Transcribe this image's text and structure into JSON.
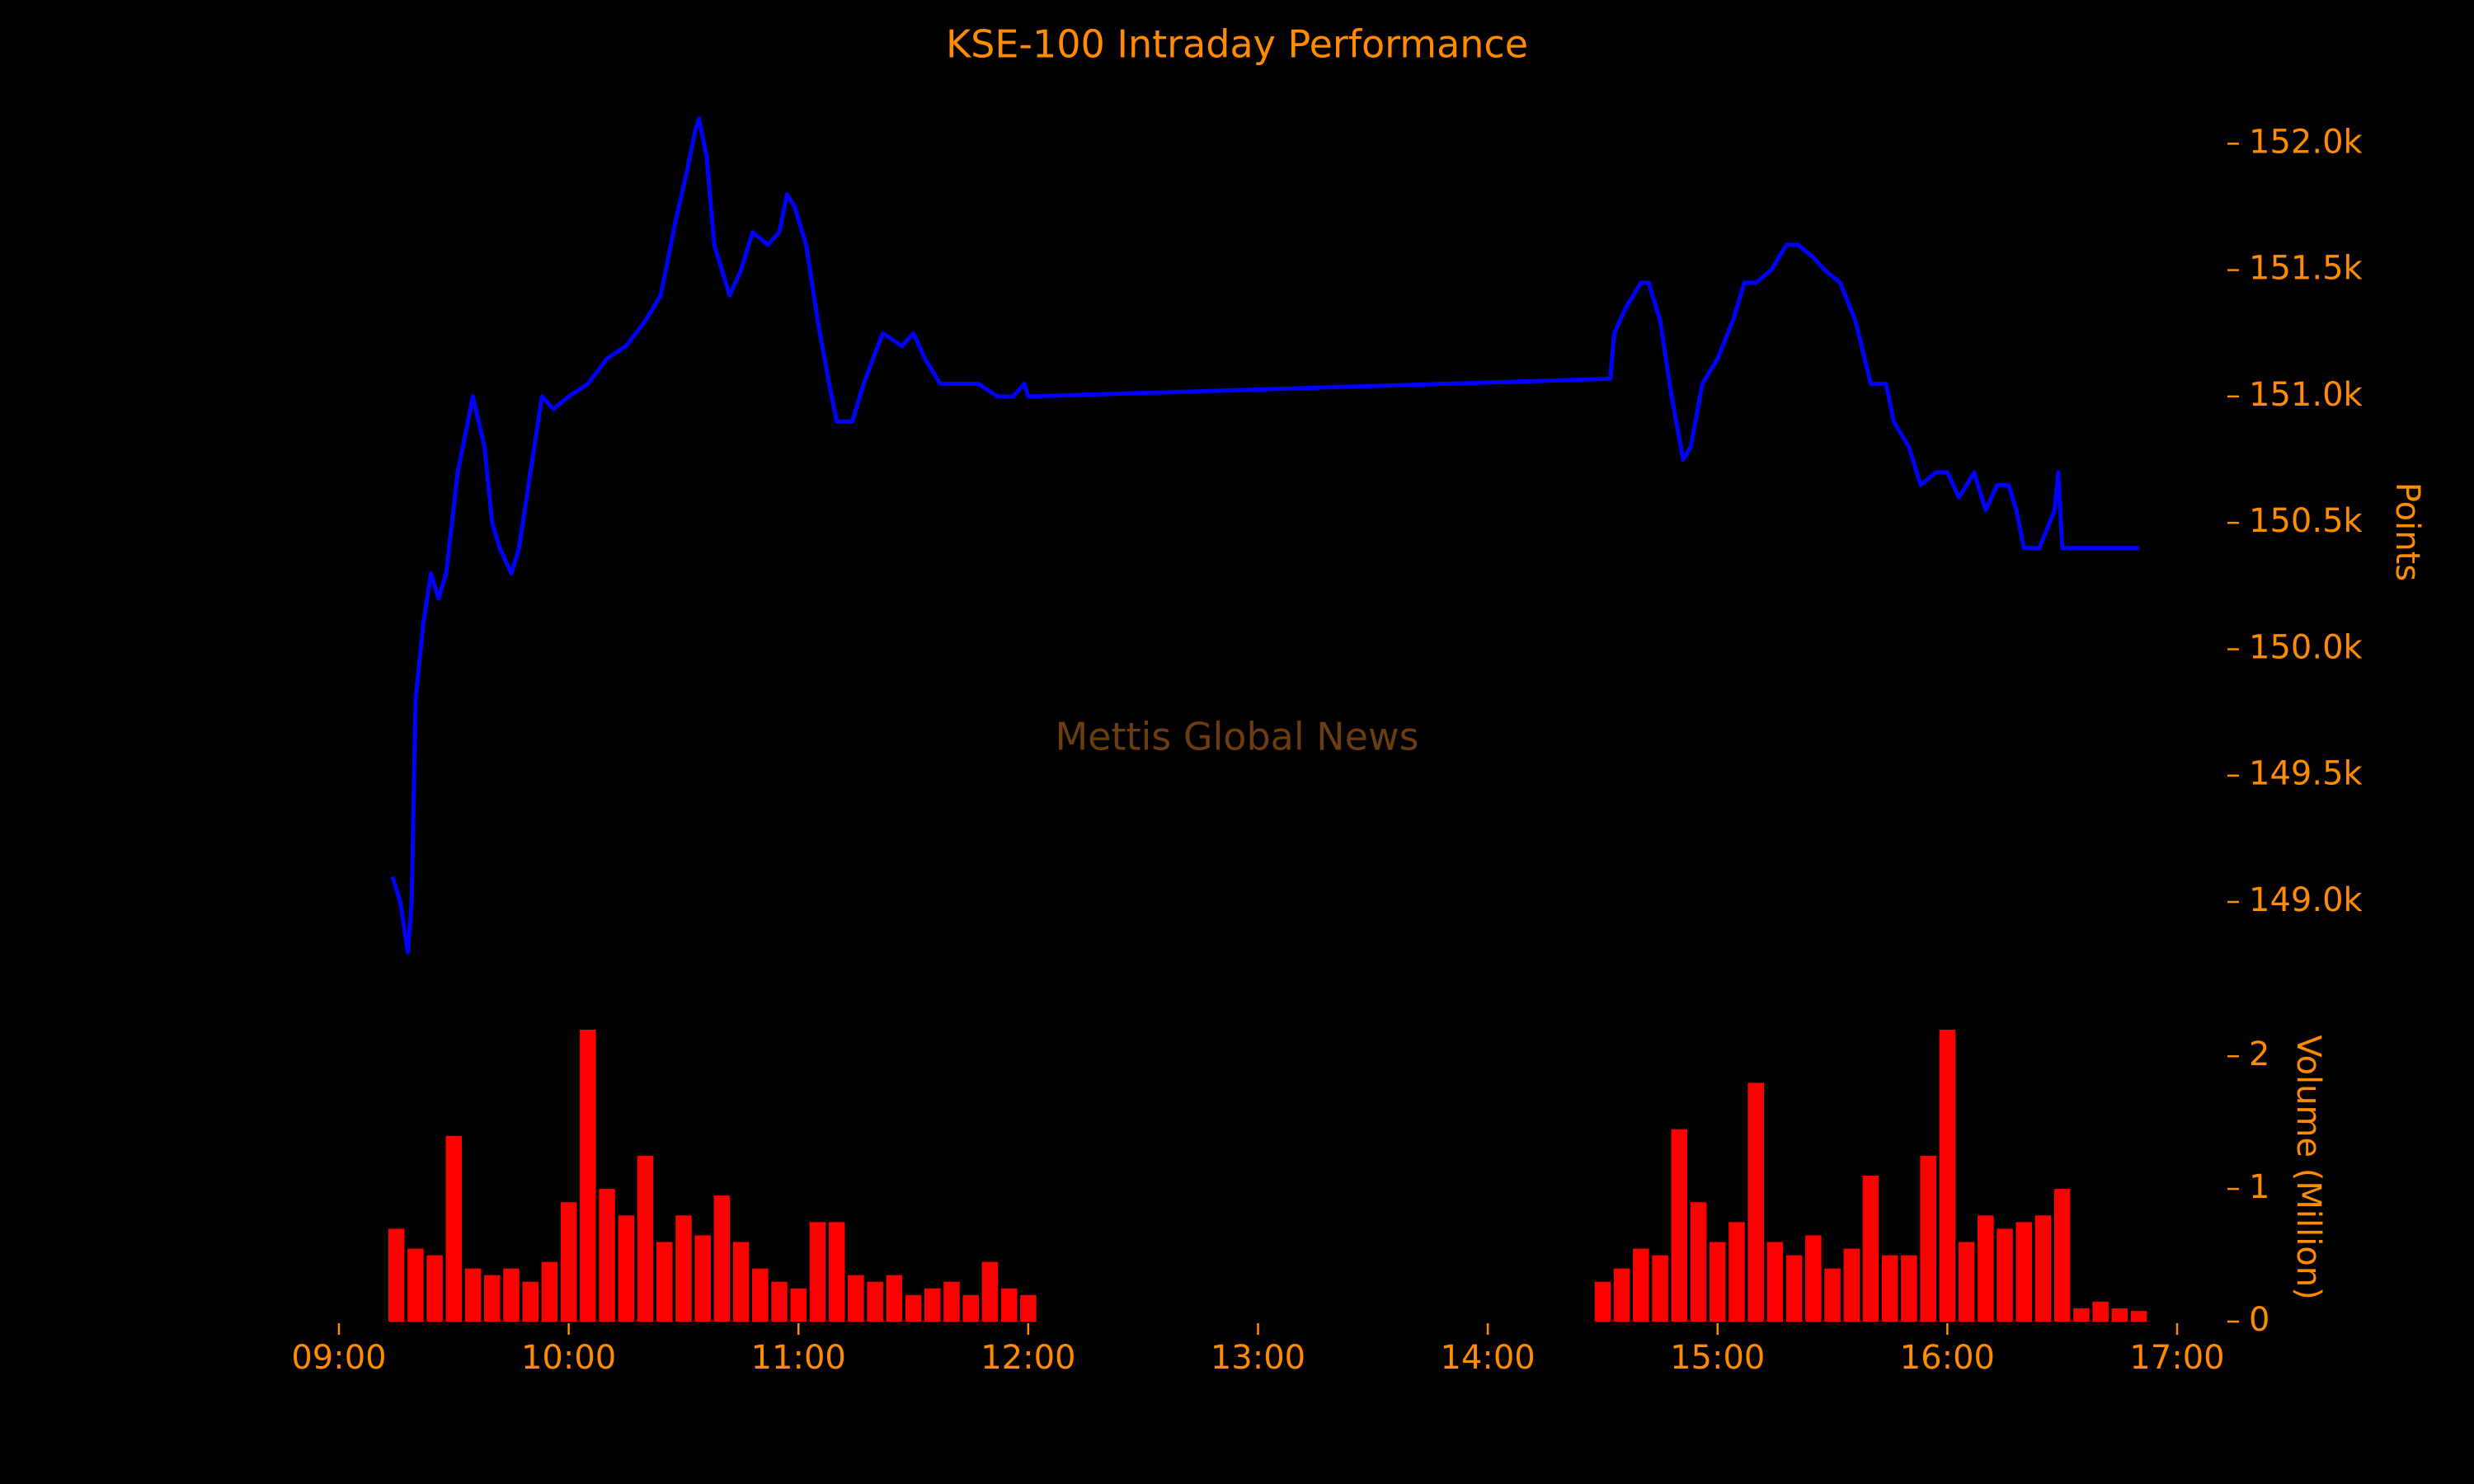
{
  "chart_data": [
    {
      "type": "line",
      "title": "KSE-100 Intraday Performance",
      "annotation": "Mettis Global News",
      "ylabel": "Points",
      "color": "#0000ff",
      "xlim": [
        "09:00",
        "17:00"
      ],
      "x": [
        "09:14",
        "09:16",
        "09:18",
        "09:19",
        "09:20",
        "09:22",
        "09:24",
        "09:26",
        "09:28",
        "09:31",
        "09:35",
        "09:38",
        "09:40",
        "09:42",
        "09:45",
        "09:47",
        "09:50",
        "09:53",
        "09:56",
        "10:00",
        "10:05",
        "10:10",
        "10:15",
        "10:20",
        "10:24",
        "10:28",
        "10:31",
        "10:33",
        "10:34",
        "10:36",
        "10:38",
        "10:40",
        "10:42",
        "10:45",
        "10:48",
        "10:52",
        "10:55",
        "10:57",
        "10:59",
        "11:02",
        "11:05",
        "11:08",
        "11:10",
        "11:14",
        "11:17",
        "11:22",
        "11:27",
        "11:30",
        "11:33",
        "11:37",
        "11:42",
        "11:47",
        "11:52",
        "11:56",
        "11:59",
        "12:00",
        "14:32",
        "14:33",
        "14:36",
        "14:40",
        "14:42",
        "14:45",
        "14:48",
        "14:51",
        "14:53",
        "14:56",
        "15:00",
        "15:04",
        "15:07",
        "15:10",
        "15:14",
        "15:18",
        "15:21",
        "15:25",
        "15:28",
        "15:32",
        "15:36",
        "15:40",
        "15:44",
        "15:46",
        "15:50",
        "15:53",
        "15:57",
        "16:00",
        "16:03",
        "16:07",
        "16:10",
        "16:13",
        "16:16",
        "16:18",
        "16:20",
        "16:24",
        "16:28",
        "16:29",
        "16:30",
        "16:50"
      ],
      "values": [
        149100,
        149000,
        148800,
        149000,
        149800,
        150100,
        150300,
        150200,
        150300,
        150700,
        151000,
        150800,
        150500,
        150400,
        150300,
        150400,
        150700,
        151000,
        150950,
        151000,
        151050,
        151150,
        151200,
        151300,
        151400,
        151700,
        151900,
        152050,
        152100,
        151950,
        151600,
        151500,
        151400,
        151500,
        151650,
        151600,
        151650,
        151800,
        151750,
        151600,
        151300,
        151050,
        150900,
        150900,
        151050,
        151250,
        151200,
        151250,
        151150,
        151050,
        151050,
        151050,
        151000,
        151000,
        151050,
        151000,
        151070,
        151250,
        151350,
        151450,
        151450,
        151300,
        151000,
        150750,
        150800,
        151050,
        151150,
        151300,
        151450,
        151450,
        151500,
        151600,
        151600,
        151550,
        151500,
        151450,
        151300,
        151050,
        151050,
        150900,
        150800,
        150650,
        150700,
        150700,
        150600,
        150700,
        150550,
        150650,
        150650,
        150550,
        150400,
        150400,
        150550,
        150700,
        150400,
        150400
      ],
      "ylim": [
        148700,
        152200
      ],
      "yticks": [
        {
          "value": 149000,
          "label": "149.0k"
        },
        {
          "value": 149500,
          "label": "149.5k"
        },
        {
          "value": 150000,
          "label": "150.0k"
        },
        {
          "value": 150500,
          "label": "150.5k"
        },
        {
          "value": 151000,
          "label": "151.0k"
        },
        {
          "value": 151500,
          "label": "151.5k"
        },
        {
          "value": 152000,
          "label": "152.0k"
        }
      ]
    },
    {
      "type": "bar",
      "ylabel": "Volume (Million)",
      "color": "#ff0000",
      "xlim": [
        "09:00",
        "17:00"
      ],
      "xticks": [
        "09:00",
        "10:00",
        "11:00",
        "12:00",
        "13:00",
        "14:00",
        "15:00",
        "16:00",
        "17:00"
      ],
      "x": [
        "09:15",
        "09:20",
        "09:25",
        "09:30",
        "09:35",
        "09:40",
        "09:45",
        "09:50",
        "09:55",
        "10:00",
        "10:05",
        "10:10",
        "10:15",
        "10:20",
        "10:25",
        "10:30",
        "10:35",
        "10:40",
        "10:45",
        "10:50",
        "10:55",
        "11:00",
        "11:05",
        "11:10",
        "11:15",
        "11:20",
        "11:25",
        "11:30",
        "11:35",
        "11:40",
        "11:45",
        "11:50",
        "11:55",
        "12:00",
        "14:30",
        "14:35",
        "14:40",
        "14:45",
        "14:50",
        "14:55",
        "15:00",
        "15:05",
        "15:10",
        "15:15",
        "15:20",
        "15:25",
        "15:30",
        "15:35",
        "15:40",
        "15:45",
        "15:50",
        "15:55",
        "16:00",
        "16:05",
        "16:10",
        "16:15",
        "16:20",
        "16:25",
        "16:30",
        "16:35",
        "16:40",
        "16:45",
        "16:50"
      ],
      "values": [
        0.7,
        0.55,
        0.5,
        1.4,
        0.4,
        0.35,
        0.4,
        0.3,
        0.45,
        0.9,
        2.2,
        1.0,
        0.8,
        1.25,
        0.6,
        0.8,
        0.65,
        0.95,
        0.6,
        0.4,
        0.3,
        0.25,
        0.75,
        0.75,
        0.35,
        0.3,
        0.35,
        0.2,
        0.25,
        0.3,
        0.2,
        0.45,
        0.25,
        0.2,
        0.3,
        0.4,
        0.55,
        0.5,
        1.45,
        0.9,
        0.6,
        0.75,
        1.8,
        0.6,
        0.5,
        0.65,
        0.4,
        0.55,
        1.1,
        0.5,
        0.5,
        1.25,
        2.2,
        0.6,
        0.8,
        0.7,
        0.75,
        0.8,
        1.0,
        0.1,
        0.15,
        0.1,
        0.08
      ],
      "ylim": [
        0,
        2.2
      ],
      "yticks": [
        0,
        1,
        2
      ]
    }
  ]
}
